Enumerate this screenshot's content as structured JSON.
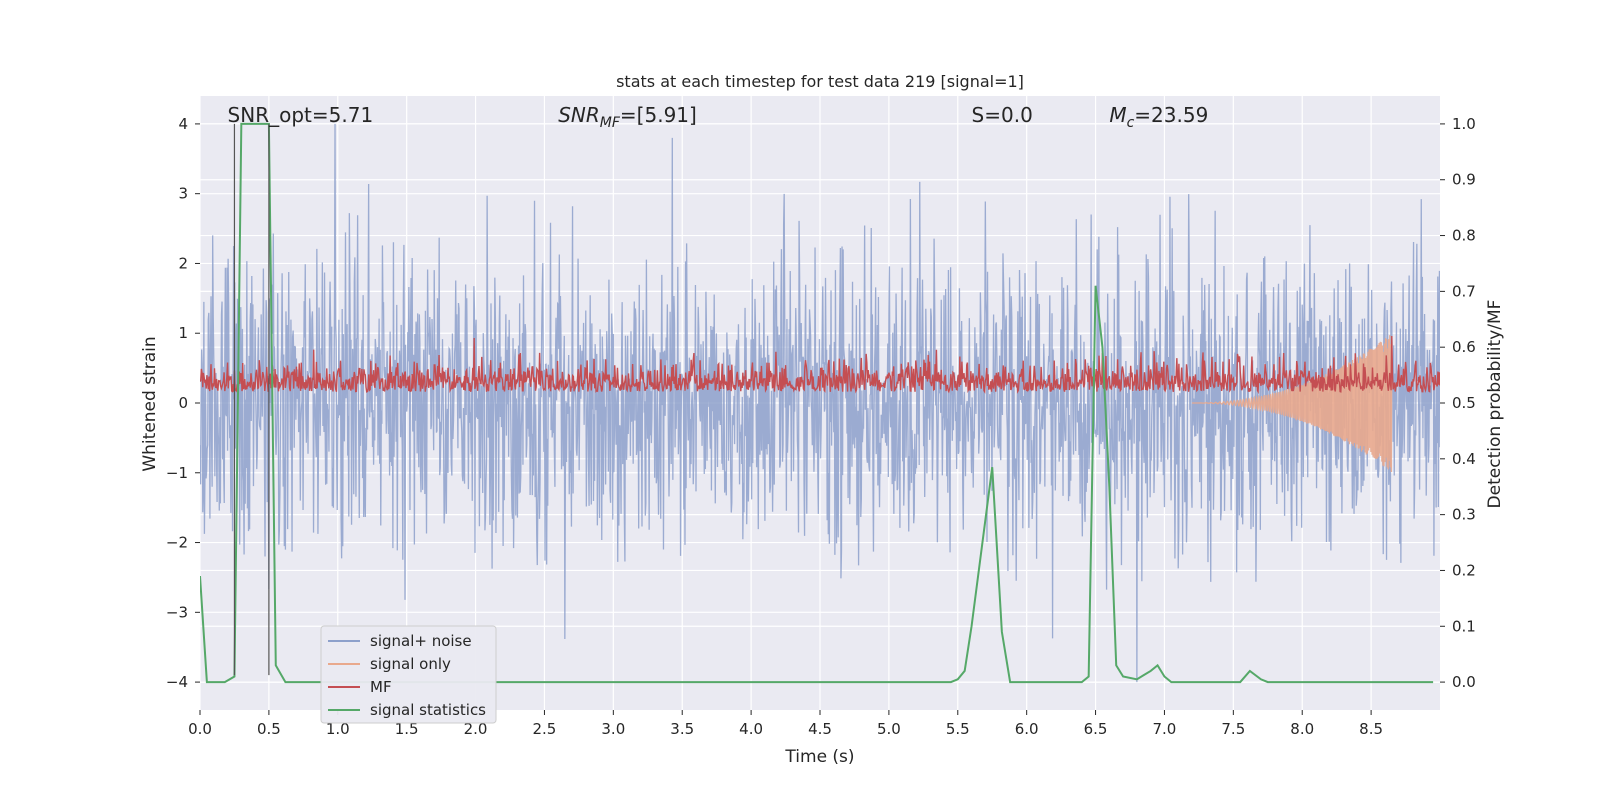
{
  "chart_data": {
    "type": "line",
    "title": "stats at each timestep for test data 219 [signal=1]",
    "xlabel": "Time (s)",
    "ylabel_left": "Whitened strain",
    "ylabel_right": "Detection probability/MF",
    "xlim": [
      0.0,
      9.0
    ],
    "ylim_left": [
      -4.4,
      4.4
    ],
    "ylim_right": [
      -0.05,
      1.05
    ],
    "x_ticks": [
      0.0,
      0.5,
      1.0,
      1.5,
      2.0,
      2.5,
      3.0,
      3.5,
      4.0,
      4.5,
      5.0,
      5.5,
      6.0,
      6.5,
      7.0,
      7.5,
      8.0,
      8.5
    ],
    "x_tick_labels": [
      "0.0",
      "0.5",
      "1.0",
      "1.5",
      "2.0",
      "2.5",
      "3.0",
      "3.5",
      "4.0",
      "4.5",
      "5.0",
      "5.5",
      "6.0",
      "6.5",
      "7.0",
      "7.5",
      "8.0",
      "8.5"
    ],
    "y_left_ticks": [
      4,
      3,
      2,
      1,
      0,
      -1,
      -2,
      -3,
      -4
    ],
    "y_left_tick_labels": [
      "4",
      "3",
      "2",
      "1",
      "0",
      "−1",
      "−2",
      "−3",
      "−4"
    ],
    "y_right_ticks": [
      1.0,
      0.9,
      0.8,
      0.7,
      0.6,
      0.5,
      0.4,
      0.3,
      0.2,
      0.1,
      0.0
    ],
    "y_right_tick_labels": [
      "1.0",
      "0.9",
      "0.8",
      "0.7",
      "0.6",
      "0.5",
      "0.4",
      "0.3",
      "0.2",
      "0.1",
      "0.0"
    ],
    "grid": true,
    "legend_position": "lower-left",
    "annotations": [
      {
        "text": "SNR_opt=5.71",
        "x": 0.2
      },
      {
        "text": "SNR_MF=[5.91]",
        "x": 2.6
      },
      {
        "text": "S=0.0",
        "x": 5.6
      },
      {
        "text": "M_c=23.59",
        "x": 6.6
      }
    ],
    "vertical_markers": [
      0.25,
      0.5
    ],
    "series": [
      {
        "name": "signal+ noise",
        "axis": "left",
        "color": "#8da0cb",
        "description_values": "Gaussian-like whitened noise, envelope about ±2.5, peaks near 4.0 at t≈0.98 and -4.0 at t≈6.8",
        "x_range": [
          0.0,
          9.0
        ],
        "sample_count": 2250,
        "envelope": 2.3
      },
      {
        "name": "signal only",
        "axis": "left",
        "color": "#e9a98d",
        "description_values": "chirp starting near t=7.2, growing amplitude to merger near t=8.65",
        "chirp_start": 7.2,
        "chirp_end": 8.65,
        "peak_amplitude": 1.0
      },
      {
        "name": "MF",
        "axis": "right",
        "color": "#c44e52",
        "baseline": 0.52,
        "noise_spread": 0.025,
        "peak": {
          "x": 8.65,
          "y": 0.62
        }
      },
      {
        "name": "signal statistics",
        "axis": "right",
        "color": "#55a868",
        "x": [
          0.0,
          0.05,
          0.18,
          0.25,
          0.28,
          0.3,
          0.45,
          0.5,
          0.55,
          0.62,
          5.45,
          5.5,
          5.55,
          5.6,
          5.75,
          5.82,
          5.88,
          6.4,
          6.45,
          6.5,
          6.55,
          6.6,
          6.65,
          6.7,
          6.8,
          6.9,
          6.95,
          7.0,
          7.05,
          7.1,
          7.55,
          7.62,
          7.7,
          7.75,
          8.95
        ],
        "y": [
          0.19,
          0.0,
          0.0,
          0.01,
          0.6,
          1.0,
          1.0,
          1.0,
          0.03,
          0.0,
          0.0,
          0.005,
          0.02,
          0.1,
          0.385,
          0.09,
          0.0,
          0.0,
          0.01,
          0.71,
          0.6,
          0.35,
          0.03,
          0.01,
          0.005,
          0.02,
          0.03,
          0.01,
          0.0,
          0.0,
          0.0,
          0.02,
          0.005,
          0.0,
          0.0
        ]
      }
    ]
  }
}
